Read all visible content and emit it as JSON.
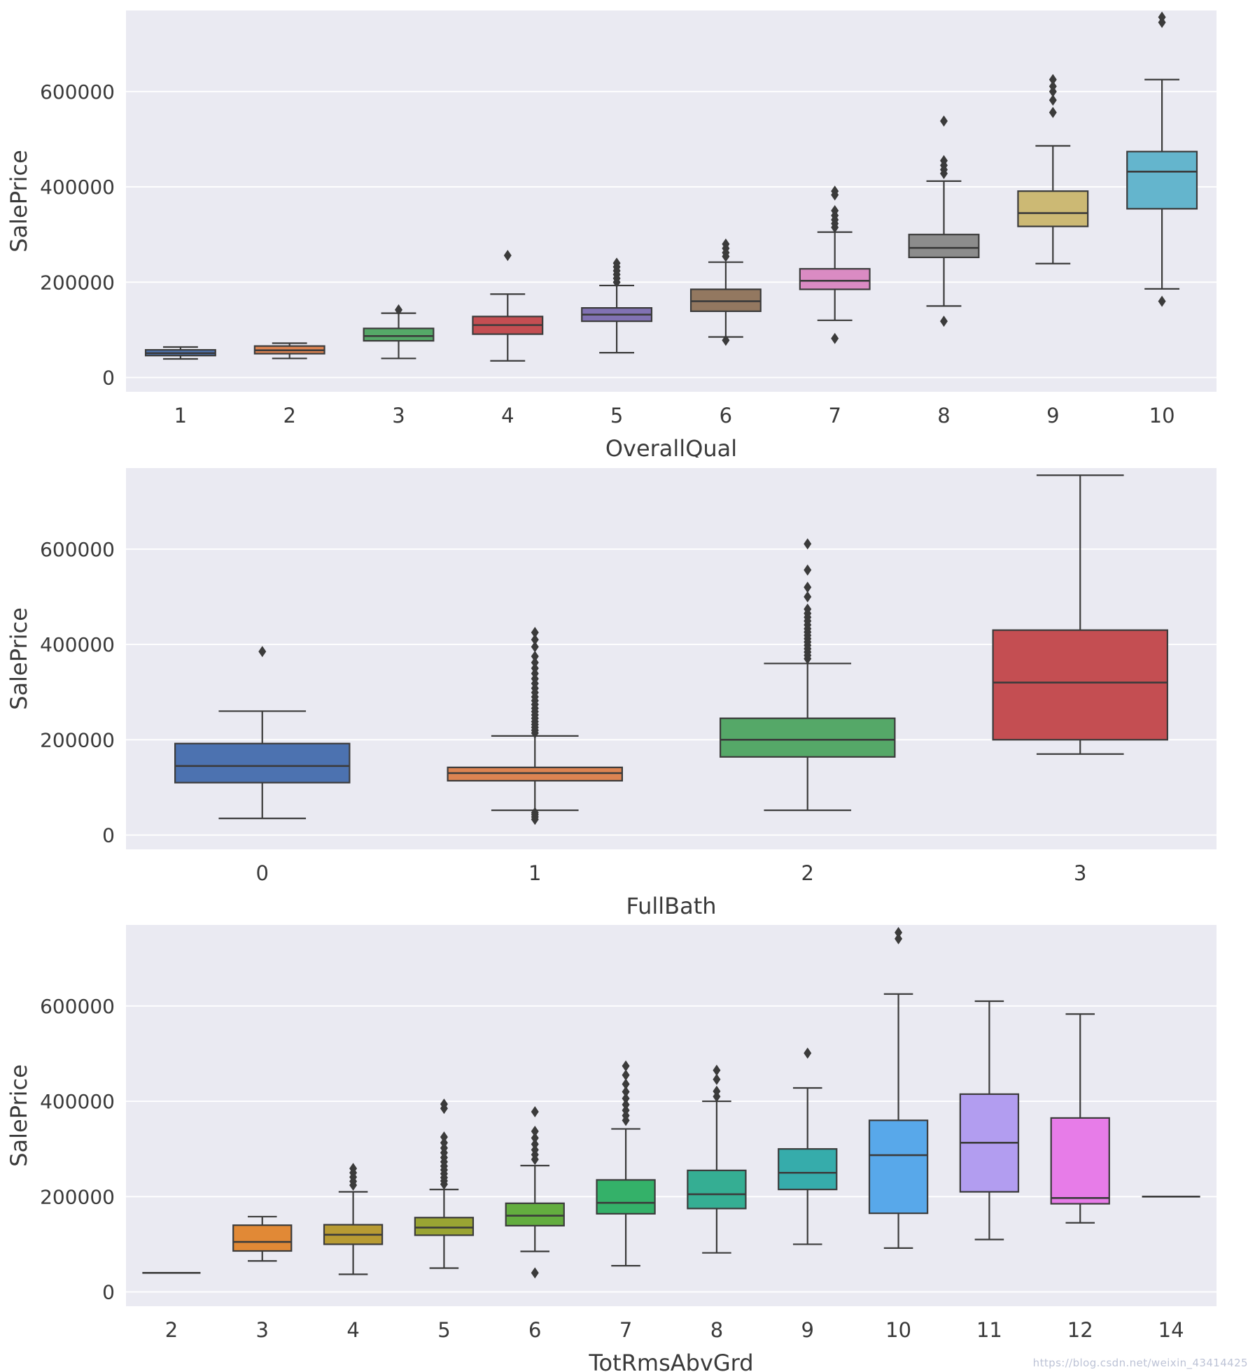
{
  "watermark": {
    "text": "https://blog.csdn.net/weixin_43414425"
  },
  "chart_style": {
    "plot_bg": "#eaeaf2",
    "grid_color": "#ffffff",
    "stroke": "#3b3b3b",
    "text_color": "#3a3a3a"
  },
  "chart_data": [
    {
      "type": "box",
      "xlabel": "OverallQual",
      "ylabel": "SalePrice",
      "ylim": [
        -30000,
        770000
      ],
      "grid": true,
      "yticks": [
        0,
        200000,
        400000,
        600000
      ],
      "ytick_labels": [
        "0",
        "200000",
        "400000",
        "600000"
      ],
      "categories": [
        "1",
        "2",
        "3",
        "4",
        "5",
        "6",
        "7",
        "8",
        "9",
        "10"
      ],
      "boxes": [
        {
          "category": "1",
          "color": "#4C72B0",
          "whisker_low": 39000,
          "q1": 46000,
          "median": 51000,
          "q3": 58000,
          "whisker_high": 64000,
          "outliers": []
        },
        {
          "category": "2",
          "color": "#DD8452",
          "whisker_low": 40000,
          "q1": 50000,
          "median": 57000,
          "q3": 66000,
          "whisker_high": 72000,
          "outliers": []
        },
        {
          "category": "3",
          "color": "#55A868",
          "whisker_low": 40000,
          "q1": 77000,
          "median": 87000,
          "q3": 103000,
          "whisker_high": 135000,
          "outliers": [
            142000
          ]
        },
        {
          "category": "4",
          "color": "#C44E52",
          "whisker_low": 35000,
          "q1": 91000,
          "median": 110000,
          "q3": 128000,
          "whisker_high": 175000,
          "outliers": [
            256000
          ]
        },
        {
          "category": "5",
          "color": "#8172B3",
          "whisker_low": 52000,
          "q1": 118000,
          "median": 132000,
          "q3": 146000,
          "whisker_high": 193000,
          "outliers": [
            200000,
            208000,
            216000,
            224000,
            232000,
            240000
          ]
        },
        {
          "category": "6",
          "color": "#937860",
          "whisker_low": 85000,
          "q1": 139000,
          "median": 160000,
          "q3": 185000,
          "whisker_high": 242000,
          "outliers": [
            78000,
            254000,
            262000,
            271000,
            280000
          ]
        },
        {
          "category": "7",
          "color": "#DA8BC3",
          "whisker_low": 120000,
          "q1": 185000,
          "median": 203000,
          "q3": 228000,
          "whisker_high": 305000,
          "outliers": [
            82000,
            315000,
            323000,
            331000,
            340000,
            350000,
            383000,
            391000
          ]
        },
        {
          "category": "8",
          "color": "#8C8C8C",
          "whisker_low": 150000,
          "q1": 252000,
          "median": 272000,
          "q3": 300000,
          "whisker_high": 412000,
          "outliers": [
            118000,
            428000,
            436000,
            445000,
            455000,
            538000
          ]
        },
        {
          "category": "9",
          "color": "#CCB974",
          "whisker_low": 239000,
          "q1": 317000,
          "median": 345000,
          "q3": 391000,
          "whisker_high": 486000,
          "outliers": [
            556000,
            582000,
            600000,
            611000,
            625000
          ]
        },
        {
          "category": "10",
          "color": "#64B5CD",
          "whisker_low": 186000,
          "q1": 354000,
          "median": 432000,
          "q3": 474000,
          "whisker_high": 625000,
          "outliers": [
            160000,
            745000,
            756000
          ]
        }
      ]
    },
    {
      "type": "box",
      "xlabel": "FullBath",
      "ylabel": "SalePrice",
      "ylim": [
        -30000,
        770000
      ],
      "grid": true,
      "yticks": [
        0,
        200000,
        400000,
        600000
      ],
      "ytick_labels": [
        "0",
        "200000",
        "400000",
        "600000"
      ],
      "categories": [
        "0",
        "1",
        "2",
        "3"
      ],
      "boxes": [
        {
          "category": "0",
          "color": "#4C72B0",
          "whisker_low": 35000,
          "q1": 110000,
          "median": 145000,
          "q3": 192000,
          "whisker_high": 260000,
          "outliers": [
            385000
          ]
        },
        {
          "category": "1",
          "color": "#DD8452",
          "whisker_low": 52000,
          "q1": 114000,
          "median": 130000,
          "q3": 142000,
          "whisker_high": 208000,
          "outliers": [
            33000,
            38000,
            43000,
            47000,
            214000,
            220000,
            226000,
            232000,
            238000,
            245000,
            252000,
            259000,
            266000,
            274000,
            282000,
            290000,
            299000,
            308000,
            318000,
            328000,
            339000,
            350000,
            362000,
            375000,
            395000,
            410000,
            425000
          ]
        },
        {
          "category": "2",
          "color": "#55A868",
          "whisker_low": 52000,
          "q1": 164000,
          "median": 200000,
          "q3": 245000,
          "whisker_high": 360000,
          "outliers": [
            370000,
            377000,
            384000,
            391000,
            398000,
            405000,
            412000,
            419000,
            426000,
            433000,
            441000,
            449000,
            457000,
            465000,
            474000,
            500000,
            520000,
            556000,
            611000
          ]
        },
        {
          "category": "3",
          "color": "#C44E52",
          "whisker_low": 170000,
          "q1": 200000,
          "median": 320000,
          "q3": 430000,
          "whisker_high": 755000,
          "outliers": []
        }
      ]
    },
    {
      "type": "box",
      "xlabel": "TotRmsAbvGrd",
      "ylabel": "SalePrice",
      "ylim": [
        -30000,
        770000
      ],
      "grid": true,
      "yticks": [
        0,
        200000,
        400000,
        600000
      ],
      "ytick_labels": [
        "0",
        "200000",
        "400000",
        "600000"
      ],
      "categories": [
        "2",
        "3",
        "4",
        "5",
        "6",
        "7",
        "8",
        "9",
        "10",
        "11",
        "12",
        "14"
      ],
      "boxes": [
        {
          "category": "2",
          "color": "#f17789",
          "whisker_low": 40000,
          "q1": 40000,
          "median": 40000,
          "q3": 40000,
          "whisker_high": 40000,
          "outliers": []
        },
        {
          "category": "3",
          "color": "#e18936",
          "whisker_low": 65000,
          "q1": 86000,
          "median": 105000,
          "q3": 140000,
          "whisker_high": 158000,
          "outliers": []
        },
        {
          "category": "4",
          "color": "#b89b33",
          "whisker_low": 37000,
          "q1": 100000,
          "median": 120000,
          "q3": 141000,
          "whisker_high": 210000,
          "outliers": [
            224000,
            232000,
            241000,
            250000,
            259000
          ]
        },
        {
          "category": "5",
          "color": "#9aa433",
          "whisker_low": 50000,
          "q1": 119000,
          "median": 135000,
          "q3": 156000,
          "whisker_high": 215000,
          "outliers": [
            226000,
            233000,
            240000,
            248000,
            256000,
            264000,
            273000,
            282000,
            292000,
            302000,
            313000,
            325000,
            385000,
            394000
          ]
        },
        {
          "category": "6",
          "color": "#63ad3f",
          "whisker_low": 85000,
          "q1": 139000,
          "median": 160000,
          "q3": 186000,
          "whisker_high": 265000,
          "outliers": [
            40000,
            278000,
            288000,
            298000,
            310000,
            323000,
            337000,
            378000
          ]
        },
        {
          "category": "7",
          "color": "#34b169",
          "whisker_low": 55000,
          "q1": 164000,
          "median": 187000,
          "q3": 235000,
          "whisker_high": 342000,
          "outliers": [
            360000,
            370000,
            381000,
            393000,
            406000,
            420000,
            436000,
            455000,
            474000
          ]
        },
        {
          "category": "8",
          "color": "#35ae93",
          "whisker_low": 82000,
          "q1": 175000,
          "median": 205000,
          "q3": 255000,
          "whisker_high": 400000,
          "outliers": [
            410000,
            421000,
            446000,
            465000
          ]
        },
        {
          "category": "9",
          "color": "#36acab",
          "whisker_low": 100000,
          "q1": 215000,
          "median": 250000,
          "q3": 300000,
          "whisker_high": 428000,
          "outliers": [
            501000
          ]
        },
        {
          "category": "10",
          "color": "#58a8ea",
          "whisker_low": 92000,
          "q1": 165000,
          "median": 287000,
          "q3": 360000,
          "whisker_high": 625000,
          "outliers": [
            741000,
            754000
          ]
        },
        {
          "category": "11",
          "color": "#b29df0",
          "whisker_low": 110000,
          "q1": 210000,
          "median": 313000,
          "q3": 415000,
          "whisker_high": 610000,
          "outliers": []
        },
        {
          "category": "12",
          "color": "#e77ce8",
          "whisker_low": 145000,
          "q1": 185000,
          "median": 197000,
          "q3": 365000,
          "whisker_high": 583000,
          "outliers": []
        },
        {
          "category": "14",
          "color": "#fe68b1",
          "whisker_low": 200000,
          "q1": 200000,
          "median": 200000,
          "q3": 200000,
          "whisker_high": 200000,
          "outliers": []
        }
      ]
    }
  ]
}
